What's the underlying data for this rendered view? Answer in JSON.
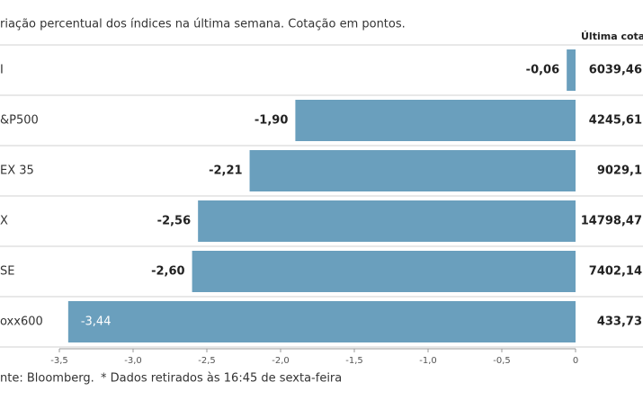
{
  "chart_data": {
    "type": "bar",
    "orientation": "horizontal",
    "title": "riação percentual dos índices na última semana. Cotação em pontos.",
    "categories": [
      "I",
      "&P500",
      "EX 35",
      "X",
      "SE",
      "oxx600"
    ],
    "values": [
      -0.06,
      -1.9,
      -2.21,
      -2.56,
      -2.6,
      -3.44
    ],
    "value_labels": [
      "-0,06",
      "-1,90",
      "-2,21",
      "-2,56",
      "-2,60",
      "-3,44"
    ],
    "color": "#6a9fbd",
    "xlim": [
      -3.5,
      0
    ],
    "xticks": [
      {
        "value": -3.5,
        "label": "-3,5"
      },
      {
        "value": -3.0,
        "label": "-3,0"
      },
      {
        "value": -2.5,
        "label": "-2,5"
      },
      {
        "value": -2.0,
        "label": "-2,0"
      },
      {
        "value": -1.5,
        "label": "-1,5"
      },
      {
        "value": -1.0,
        "label": "-1,0"
      },
      {
        "value": -0.5,
        "label": "-0,5"
      },
      0
    ],
    "quote_header": "Última cotaç",
    "quotes": [
      "6039,46",
      "4245,61",
      "9029,1",
      "14798,47",
      "7402,14",
      "433,73"
    ],
    "source": "nte: Bloomberg.",
    "note": "* Dados retirados às 16:45 de sexta-feira"
  }
}
